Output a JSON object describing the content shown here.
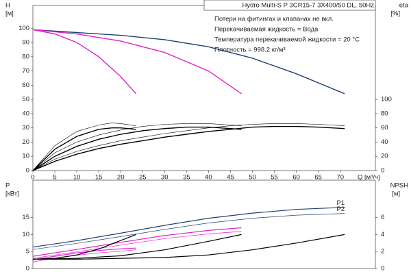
{
  "chart_data": [
    {
      "type": "line",
      "title": "Hydro Multi-S P 3CR15-7 3X400/50 DL, 50Hz",
      "notes": [
        "Потери на фитингах и клапанах не вкл.",
        "Перекачиваемая жидкость = Вода",
        "Температура перекачиваемой жидкости = 20 °C",
        "Плотность = 998.2 кг/м³"
      ],
      "ylabel": "H",
      "yunit": "[м]",
      "y2label": "eta",
      "y2unit": "[%]",
      "xlabel": "Q [м³/ч]",
      "xlim": [
        0,
        78
      ],
      "xticks": [
        0,
        5,
        10,
        15,
        20,
        25,
        30,
        35,
        40,
        45,
        50,
        55,
        60,
        65,
        70
      ],
      "ylim": [
        0,
        116
      ],
      "yticks": [
        0,
        10,
        20,
        30,
        40,
        50,
        60,
        70,
        80,
        90,
        100
      ],
      "y2lim": [
        0,
        232
      ],
      "y2ticks": [
        0,
        20,
        40,
        60,
        80,
        100
      ],
      "series": [
        {
          "color": "#1f3f73",
          "line_width": 1.4,
          "x": [
            0,
            10,
            20,
            30,
            40,
            50,
            60,
            71
          ],
          "values": [
            99,
            97,
            95,
            92,
            87,
            79,
            68,
            54
          ]
        },
        {
          "color": "#e020d0",
          "line_width": 1.4,
          "x": [
            0,
            10,
            20,
            30,
            40,
            47.5
          ],
          "values": [
            99,
            96,
            91,
            83,
            70,
            54
          ]
        },
        {
          "color": "#e020d0",
          "line_width": 1.4,
          "x": [
            0,
            5,
            10,
            15,
            20,
            23.5
          ],
          "values": [
            99,
            96,
            90,
            80,
            66,
            54
          ]
        },
        {
          "color": "#000000",
          "line_width": 1.4,
          "axis": "y2",
          "x": [
            0,
            5,
            10,
            15,
            20,
            25,
            30,
            35,
            40,
            45,
            50,
            55,
            60,
            65,
            71
          ],
          "values": [
            0,
            13,
            23,
            31,
            37,
            42,
            47,
            51,
            55,
            58,
            61,
            62,
            62,
            61,
            59
          ]
        },
        {
          "color": "#000000",
          "line_width": 1.4,
          "axis": "y2",
          "x": [
            0,
            5,
            10,
            15,
            20,
            25,
            30,
            35,
            40,
            45,
            47.5
          ],
          "values": [
            0,
            20,
            34,
            44,
            51,
            56,
            59,
            61,
            61,
            59,
            58
          ]
        },
        {
          "color": "#000000",
          "line_width": 1.4,
          "axis": "y2",
          "x": [
            0,
            5,
            10,
            15,
            18,
            20,
            23.5
          ],
          "values": [
            0,
            30,
            48,
            58,
            60,
            60,
            58
          ]
        },
        {
          "color": "#000000",
          "line_width": 0.6,
          "axis": "y2",
          "x": [
            0,
            5,
            10,
            15,
            20,
            25,
            30,
            35,
            40,
            45,
            50,
            55,
            60,
            65,
            71
          ],
          "values": [
            0,
            16,
            27,
            35,
            42,
            47,
            52,
            56,
            60,
            63,
            65,
            66,
            66,
            65,
            63
          ]
        },
        {
          "color": "#000000",
          "line_width": 0.6,
          "axis": "y2",
          "x": [
            0,
            5,
            10,
            15,
            20,
            25,
            30,
            35,
            40,
            45,
            47.5
          ],
          "values": [
            0,
            25,
            40,
            50,
            57,
            62,
            65,
            66,
            66,
            64,
            63
          ]
        },
        {
          "color": "#000000",
          "line_width": 0.6,
          "axis": "y2",
          "x": [
            0,
            5,
            10,
            15,
            18,
            20,
            23.5
          ],
          "values": [
            0,
            35,
            55,
            64,
            67,
            66,
            63
          ]
        }
      ]
    },
    {
      "type": "line",
      "ylabel": "P",
      "yunit": "[кВт]",
      "y2label": "NPSH",
      "y2unit": "[м]",
      "xlim": [
        0,
        78
      ],
      "ylim": [
        0,
        26
      ],
      "yticks": [
        0,
        5,
        10,
        15
      ],
      "y2lim": [
        0,
        10.4
      ],
      "y2ticks": [
        0,
        2,
        4,
        6
      ],
      "series": [
        {
          "name": "P1",
          "color": "#1f3f73",
          "line_width": 1.2,
          "x": [
            0,
            10,
            20,
            30,
            40,
            50,
            60,
            71
          ],
          "values": [
            6.3,
            8.2,
            10.4,
            12.7,
            14.8,
            16.3,
            17.4,
            18
          ]
        },
        {
          "name": "P2",
          "color": "#1f3f73",
          "line_width": 0.7,
          "x": [
            0,
            10,
            20,
            30,
            40,
            50,
            60,
            71
          ],
          "values": [
            5.6,
            7.4,
            9.4,
            11.5,
            13.4,
            14.8,
            15.7,
            16.2
          ]
        },
        {
          "color": "#e020d0",
          "line_width": 1.2,
          "x": [
            0,
            10,
            20,
            30,
            40,
            47.5
          ],
          "values": [
            3.6,
            5.6,
            7.7,
            9.7,
            11.2,
            12
          ]
        },
        {
          "color": "#e020d0",
          "line_width": 0.7,
          "x": [
            0,
            10,
            20,
            30,
            40,
            47.5
          ],
          "values": [
            3,
            4.9,
            6.9,
            8.8,
            10.2,
            10.9
          ]
        },
        {
          "color": "#e020d0",
          "line_width": 1.2,
          "x": [
            0,
            5,
            10,
            15,
            20,
            23.5
          ],
          "values": [
            2.6,
            3.6,
            4.6,
            5.3,
            5.8,
            6
          ]
        },
        {
          "color": "#e020d0",
          "line_width": 0.7,
          "x": [
            0,
            5,
            10,
            15,
            20,
            23.5
          ],
          "values": [
            2,
            3,
            3.9,
            4.6,
            5.1,
            5.5
          ]
        },
        {
          "color": "#000000",
          "line_width": 1.2,
          "axis": "y2",
          "x": [
            0,
            10,
            20,
            30,
            40,
            50,
            60,
            71
          ],
          "values": [
            1.1,
            1.1,
            1.2,
            1.3,
            1.6,
            2.2,
            3,
            4
          ]
        },
        {
          "color": "#000000",
          "line_width": 1.2,
          "axis": "y2",
          "x": [
            0,
            10,
            20,
            30,
            40,
            47.5
          ],
          "values": [
            1.1,
            1.2,
            1.5,
            2.2,
            3.2,
            4
          ]
        },
        {
          "color": "#000000",
          "line_width": 1.2,
          "axis": "y2",
          "x": [
            0,
            5,
            10,
            15,
            20,
            23.5
          ],
          "values": [
            1.1,
            1.2,
            1.6,
            2.3,
            3.3,
            4
          ]
        }
      ]
    }
  ]
}
